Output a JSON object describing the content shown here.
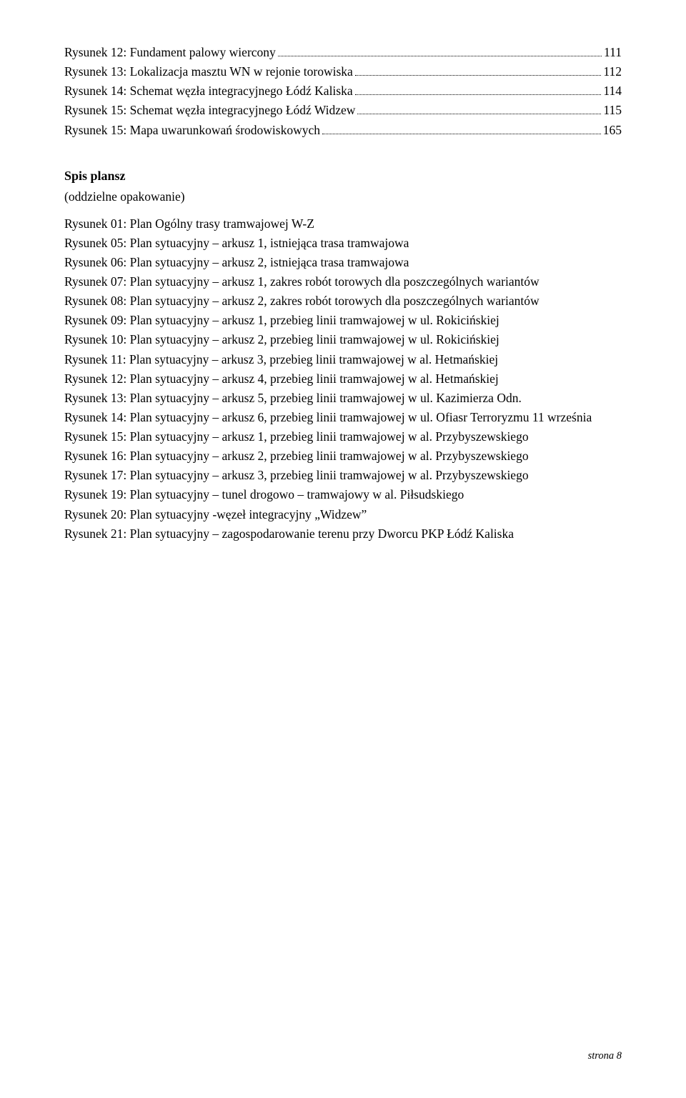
{
  "toc": [
    {
      "label": "Rysunek 12: Fundament palowy wiercony",
      "page": "111"
    },
    {
      "label": "Rysunek 13: Lokalizacja masztu WN w rejonie torowiska",
      "page": "112"
    },
    {
      "label": "Rysunek 14: Schemat węzła integracyjnego Łódź Kaliska",
      "page": "114"
    },
    {
      "label": "Rysunek 15: Schemat węzła integracyjnego Łódź Widzew",
      "page": "115"
    },
    {
      "label": "Rysunek 15: Mapa uwarunkowań środowiskowych",
      "page": "165"
    }
  ],
  "heading": "Spis plansz",
  "subheading": "(oddzielne opakowanie)",
  "list": [
    "Rysunek 01: Plan Ogólny trasy tramwajowej W-Z",
    "Rysunek 05: Plan sytuacyjny – arkusz 1, istniejąca trasa tramwajowa",
    "Rysunek 06: Plan sytuacyjny – arkusz 2, istniejąca trasa tramwajowa",
    "Rysunek 07: Plan sytuacyjny – arkusz 1, zakres robót torowych dla poszczególnych wariantów",
    "Rysunek 08: Plan sytuacyjny – arkusz 2, zakres robót torowych dla poszczególnych wariantów",
    "Rysunek 09: Plan sytuacyjny – arkusz 1, przebieg linii tramwajowej w ul. Rokicińskiej",
    "Rysunek 10: Plan sytuacyjny – arkusz 2, przebieg linii tramwajowej w ul. Rokicińskiej",
    "Rysunek 11: Plan sytuacyjny – arkusz 3, przebieg linii tramwajowej w al. Hetmańskiej",
    "Rysunek 12: Plan sytuacyjny – arkusz 4, przebieg linii tramwajowej w al. Hetmańskiej",
    "Rysunek 13: Plan sytuacyjny – arkusz 5, przebieg linii tramwajowej w ul. Kazimierza Odn.",
    "Rysunek 14: Plan sytuacyjny – arkusz 6, przebieg linii tramwajowej w ul. Ofiasr Terroryzmu 11 września",
    "Rysunek 15: Plan sytuacyjny – arkusz 1, przebieg linii tramwajowej w al. Przybyszewskiego",
    "Rysunek 16: Plan sytuacyjny – arkusz 2, przebieg linii tramwajowej w al. Przybyszewskiego",
    "Rysunek 17: Plan sytuacyjny – arkusz 3, przebieg linii tramwajowej w al. Przybyszewskiego",
    "Rysunek 19: Plan sytuacyjny – tunel drogowo – tramwajowy w al. Piłsudskiego",
    "Rysunek 20: Plan sytuacyjny  -węzeł integracyjny „Widzew”",
    "Rysunek 21: Plan sytuacyjny – zagospodarowanie terenu przy Dworcu PKP Łódź Kaliska"
  ],
  "footer": "strona 8"
}
